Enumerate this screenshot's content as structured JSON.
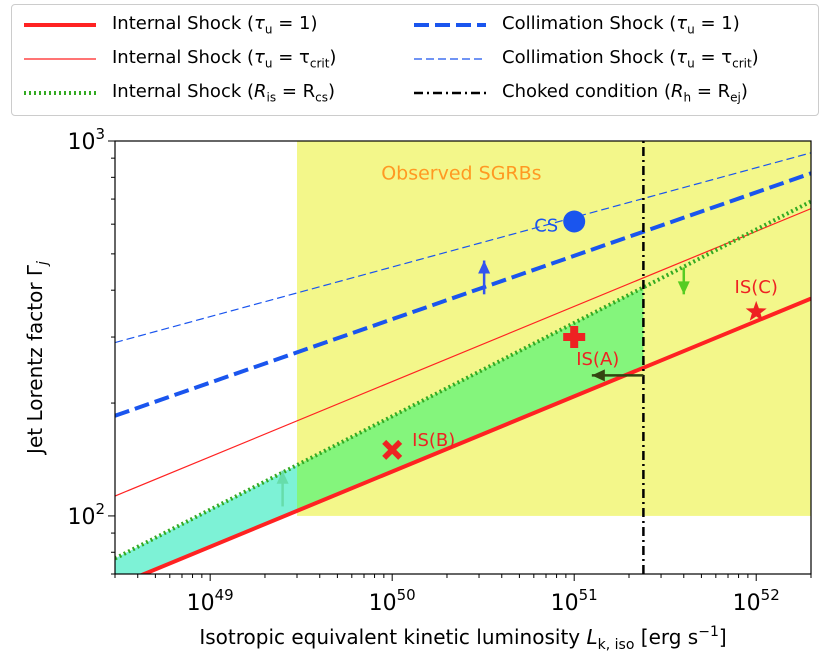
{
  "chart_data": {
    "type": "line",
    "title": "",
    "xlabel": "Isotropic equivalent kinetic luminosity",
    "xlabel_symbol": "L",
    "xlabel_sub": "k, iso",
    "xlabel_units": "[erg s",
    "xlabel_units_sup": "−1",
    "xlabel_units_end": "]",
    "ylabel": "Jet Lorentz factor Γ",
    "ylabel_sub": "j",
    "xscale": "log",
    "yscale": "log",
    "xlim": [
      3e+48,
      2e+52
    ],
    "ylim": [
      70,
      1000
    ],
    "xticks": [
      {
        "value": 1e+49,
        "base": "10",
        "exp": "49"
      },
      {
        "value": 1e+50,
        "base": "10",
        "exp": "50"
      },
      {
        "value": 1e+51,
        "base": "10",
        "exp": "51"
      },
      {
        "value": 1e+52,
        "base": "10",
        "exp": "52"
      }
    ],
    "yticks": [
      {
        "value": 100,
        "base": "10",
        "exp": "2"
      },
      {
        "value": 1000,
        "base": "10",
        "exp": "3"
      }
    ],
    "series": [
      {
        "name": "Internal Shock (τu = 1)",
        "label_main": "Internal Shock (",
        "label_var": "τ",
        "label_sub": "u",
        "label_rest": " = 1)",
        "color": "#ff2222",
        "style": "thick-solid",
        "points": [
          [
            3e+48,
            65
          ],
          [
            2e+52,
            380
          ]
        ]
      },
      {
        "name": "Internal Shock (τu = τcrit)",
        "label_main": "Internal Shock (",
        "label_var": "τ",
        "label_sub": "u",
        "label_rest": " = τ",
        "label_rest_sub": "crit",
        "label_end": ")",
        "color": "#ff2222",
        "style": "thin-solid",
        "points": [
          [
            3e+48,
            113
          ],
          [
            2e+52,
            660
          ]
        ]
      },
      {
        "name": "Internal Shock (Ris = Rcs)",
        "label_main": "Internal Shock (",
        "label_var": "R",
        "label_sub": "is",
        "label_rest": " = R",
        "label_rest_sub": "cs",
        "label_end": ")",
        "color": "#33aa22",
        "style": "dotted",
        "points": [
          [
            3e+48,
            77
          ],
          [
            2e+52,
            690
          ]
        ]
      },
      {
        "name": "Collimation Shock (τu = 1)",
        "label_main": "Collimation Shock (",
        "label_var": "τ",
        "label_sub": "u",
        "label_rest": " = 1)",
        "color": "#1a55ee",
        "style": "thick-dashed",
        "points": [
          [
            3e+48,
            185
          ],
          [
            2e+52,
            820
          ]
        ]
      },
      {
        "name": "Collimation Shock (τu = τcrit)",
        "label_main": "Collimation Shock (",
        "label_var": "τ",
        "label_sub": "u",
        "label_rest": " = τ",
        "label_rest_sub": "crit",
        "label_end": ")",
        "color": "#1a55ee",
        "style": "thin-dashed",
        "points": [
          [
            3e+48,
            290
          ],
          [
            2e+52,
            930
          ]
        ]
      },
      {
        "name": "Choked condition (Rh = Rej)",
        "label_main": "Choked condition (",
        "label_var": "R",
        "label_sub": "h",
        "label_rest": " = R",
        "label_rest_sub": "ej",
        "label_end": ")",
        "color": "#000000",
        "style": "dashdot",
        "points": [
          [
            2.4e+51,
            70
          ],
          [
            2.4e+51,
            1000
          ]
        ]
      }
    ],
    "regions": [
      {
        "name": "observed-sgrbs-region",
        "label": "Observed SGRBs",
        "color": "#f3f78a",
        "x": [
          3e+49,
          2e+52
        ],
        "y": [
          100,
          1000
        ]
      }
    ],
    "markers": [
      {
        "name": "CS",
        "label": "CS",
        "x": 1e+51,
        "y": 610,
        "shape": "circle",
        "color": "#1a55ee"
      },
      {
        "name": "IS(A)",
        "label": "IS(A)",
        "x": 1e+51,
        "y": 300,
        "shape": "plus",
        "color": "#ee2222"
      },
      {
        "name": "IS(B)",
        "label": "IS(B)",
        "x": 1e+50,
        "y": 150,
        "shape": "x",
        "color": "#ee2222"
      },
      {
        "name": "IS(C)",
        "label": "IS(C)",
        "x": 1e+52,
        "y": 350,
        "shape": "star",
        "color": "#ee2222"
      }
    ],
    "arrows": [
      {
        "x": 3.2e+50,
        "y_from": 390,
        "y_to": 480,
        "color": "#3355ee"
      },
      {
        "x": 4e+51,
        "y_from": 460,
        "y_to": 390,
        "color": "#55cc22"
      },
      {
        "x": 2.5e+49,
        "y_from": 106,
        "y_to": 132,
        "color": "#66ddaa"
      },
      {
        "x_from": 2.4e+51,
        "x_to": 1.25e+51,
        "y": 237,
        "color": "#334411"
      }
    ],
    "legend": {
      "position": "top",
      "columns": 2
    }
  }
}
